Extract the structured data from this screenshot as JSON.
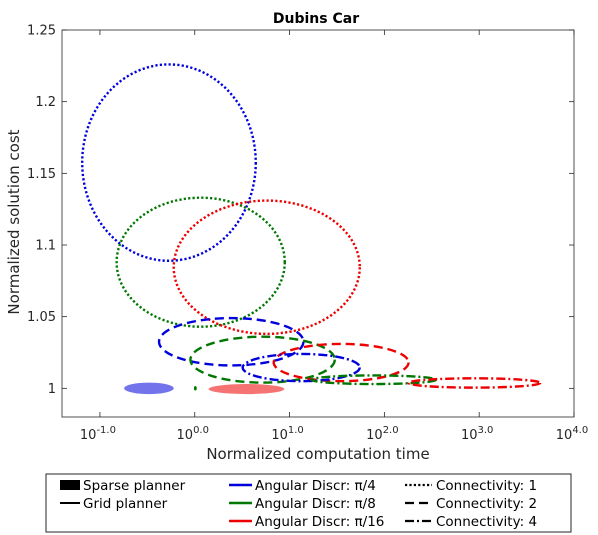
{
  "chart_data": {
    "type": "scatter",
    "title": "Dubins Car",
    "xlabel": "Normalized computation time",
    "ylabel": "Normalized solution cost",
    "x_scale": "log",
    "xlim": [
      0.0398,
      10000
    ],
    "ylim": [
      0.98,
      1.25
    ],
    "x_ticks": [
      {
        "value": 0.1,
        "base": "10",
        "exp": "-1.0"
      },
      {
        "value": 1,
        "base": "10",
        "exp": "0.0"
      },
      {
        "value": 10,
        "base": "10",
        "exp": "1.0"
      },
      {
        "value": 100,
        "base": "10",
        "exp": "2.0"
      },
      {
        "value": 1000,
        "base": "10",
        "exp": "3.0"
      },
      {
        "value": 10000,
        "base": "10",
        "exp": "4.0"
      }
    ],
    "y_ticks": [
      {
        "value": 1,
        "label": "1"
      },
      {
        "value": 1.05,
        "label": "1.05"
      },
      {
        "value": 1.1,
        "label": "1.1"
      },
      {
        "value": 1.15,
        "label": "1.15"
      },
      {
        "value": 1.2,
        "label": "1.2"
      },
      {
        "value": 1.25,
        "label": "1.25"
      }
    ],
    "grid": false,
    "colors": {
      "pi_4": "#0000dd",
      "pi_8": "#007700",
      "pi_16": "#ee0000"
    },
    "series": [
      {
        "planner": "grid",
        "discr": "pi_4",
        "connectivity": 1,
        "x_min": 0.065,
        "x_max": 4.4,
        "y_min": 1.089,
        "y_max": 1.226
      },
      {
        "planner": "grid",
        "discr": "pi_8",
        "connectivity": 1,
        "x_min": 0.15,
        "x_max": 8.9,
        "y_min": 1.043,
        "y_max": 1.133
      },
      {
        "planner": "grid",
        "discr": "pi_16",
        "connectivity": 1,
        "x_min": 0.6,
        "x_max": 55,
        "y_min": 1.038,
        "y_max": 1.131
      },
      {
        "planner": "grid",
        "discr": "pi_4",
        "connectivity": 2,
        "x_min": 0.42,
        "x_max": 14,
        "y_min": 1.016,
        "y_max": 1.049
      },
      {
        "planner": "grid",
        "discr": "pi_8",
        "connectivity": 2,
        "x_min": 0.9,
        "x_max": 30,
        "y_min": 1.004,
        "y_max": 1.036
      },
      {
        "planner": "grid",
        "discr": "pi_16",
        "connectivity": 2,
        "x_min": 6.8,
        "x_max": 180,
        "y_min": 1.005,
        "y_max": 1.031
      },
      {
        "planner": "grid",
        "discr": "pi_4",
        "connectivity": 4,
        "x_min": 3.2,
        "x_max": 55,
        "y_min": 1.005,
        "y_max": 1.024
      },
      {
        "planner": "grid",
        "discr": "pi_8",
        "connectivity": 4,
        "x_min": 17,
        "x_max": 350,
        "y_min": 1.003,
        "y_max": 1.009
      },
      {
        "planner": "grid",
        "discr": "pi_16",
        "connectivity": 4,
        "x_min": 180,
        "x_max": 4400,
        "y_min": 1.0005,
        "y_max": 1.007
      },
      {
        "planner": "sparse",
        "discr": "pi_4",
        "x_min": 0.18,
        "x_max": 0.6,
        "y_min": 0.996,
        "y_max": 1.004
      },
      {
        "planner": "sparse",
        "discr": "pi_8",
        "x_min": 0.98,
        "x_max": 1.05,
        "y_min": 0.9985,
        "y_max": 1.0015
      },
      {
        "planner": "sparse",
        "discr": "pi_16",
        "x_min": 1.4,
        "x_max": 8.8,
        "y_min": 0.996,
        "y_max": 1.003
      }
    ],
    "legend": {
      "position": "bottom",
      "planner": [
        {
          "key": "sparse",
          "label": "Sparse planner"
        },
        {
          "key": "grid",
          "label": "Grid planner"
        }
      ],
      "discr": [
        {
          "key": "pi_4",
          "label": "Angular Discr: π/4"
        },
        {
          "key": "pi_8",
          "label": "Angular Discr: π/8"
        },
        {
          "key": "pi_16",
          "label": "Angular Discr: π/16"
        }
      ],
      "connectivity": [
        {
          "key": 1,
          "label": "Connectivity: 1"
        },
        {
          "key": 2,
          "label": "Connectivity: 2"
        },
        {
          "key": 4,
          "label": "Connectivity: 4"
        }
      ]
    }
  }
}
